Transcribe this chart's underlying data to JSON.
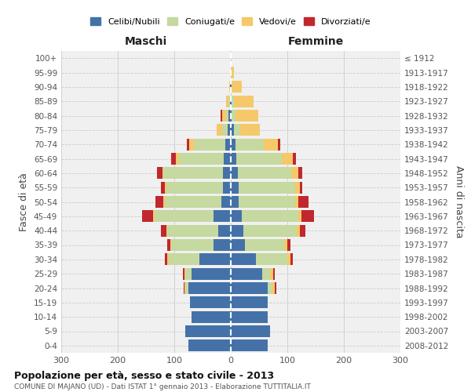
{
  "age_groups": [
    "0-4",
    "5-9",
    "10-14",
    "15-19",
    "20-24",
    "25-29",
    "30-34",
    "35-39",
    "40-44",
    "45-49",
    "50-54",
    "55-59",
    "60-64",
    "65-69",
    "70-74",
    "75-79",
    "80-84",
    "85-89",
    "90-94",
    "95-99",
    "100+"
  ],
  "birth_years": [
    "2008-2012",
    "2003-2007",
    "1998-2002",
    "1993-1997",
    "1988-1992",
    "1983-1987",
    "1978-1982",
    "1973-1977",
    "1968-1972",
    "1963-1967",
    "1958-1962",
    "1953-1957",
    "1948-1952",
    "1943-1947",
    "1938-1942",
    "1933-1937",
    "1928-1932",
    "1923-1927",
    "1918-1922",
    "1913-1917",
    "≤ 1912"
  ],
  "maschi": {
    "celibi": [
      75,
      80,
      70,
      72,
      75,
      70,
      55,
      30,
      22,
      30,
      17,
      14,
      14,
      12,
      10,
      5,
      4,
      2,
      1,
      0,
      0
    ],
    "coniugati": [
      0,
      0,
      0,
      0,
      5,
      10,
      55,
      75,
      90,
      105,
      100,
      100,
      105,
      80,
      55,
      10,
      4,
      2,
      0,
      0,
      0
    ],
    "vedovi": [
      0,
      0,
      0,
      0,
      2,
      2,
      2,
      2,
      2,
      2,
      2,
      2,
      2,
      5,
      8,
      10,
      7,
      5,
      2,
      0,
      0
    ],
    "divorziati": [
      0,
      0,
      0,
      0,
      2,
      3,
      5,
      5,
      10,
      20,
      15,
      8,
      10,
      8,
      5,
      0,
      3,
      0,
      0,
      0,
      0
    ]
  },
  "femmine": {
    "nubili": [
      65,
      70,
      65,
      65,
      65,
      55,
      45,
      25,
      22,
      20,
      14,
      14,
      12,
      10,
      8,
      5,
      2,
      2,
      1,
      0,
      0
    ],
    "coniugate": [
      0,
      0,
      0,
      0,
      8,
      15,
      55,
      70,
      95,
      100,
      100,
      100,
      95,
      80,
      50,
      12,
      6,
      3,
      0,
      0,
      0
    ],
    "vedove": [
      0,
      0,
      0,
      0,
      5,
      5,
      5,
      5,
      5,
      5,
      5,
      8,
      12,
      20,
      25,
      35,
      40,
      35,
      18,
      5,
      2
    ],
    "divorziate": [
      0,
      0,
      0,
      0,
      2,
      3,
      5,
      5,
      10,
      22,
      18,
      5,
      8,
      5,
      5,
      0,
      0,
      0,
      0,
      0,
      0
    ]
  },
  "colors": {
    "celibi_nubili": "#4472a8",
    "coniugati": "#c5d9a0",
    "vedovi": "#f5c96a",
    "divorziati": "#c0282d"
  },
  "legend_labels": [
    "Celibi/Nubili",
    "Coniugati/e",
    "Vedovi/e",
    "Divorziati/e"
  ],
  "title": "Popolazione per età, sesso e stato civile - 2013",
  "subtitle": "COMUNE DI MAJANO (UD) - Dati ISTAT 1° gennaio 2013 - Elaborazione TUTTITALIA.IT",
  "xlabel_left": "Maschi",
  "xlabel_right": "Femmine",
  "ylabel_left": "Fasce di età",
  "ylabel_right": "Anni di nascita",
  "xlim": 300,
  "background_color": "#ffffff",
  "plot_bg_color": "#f0f0f0"
}
